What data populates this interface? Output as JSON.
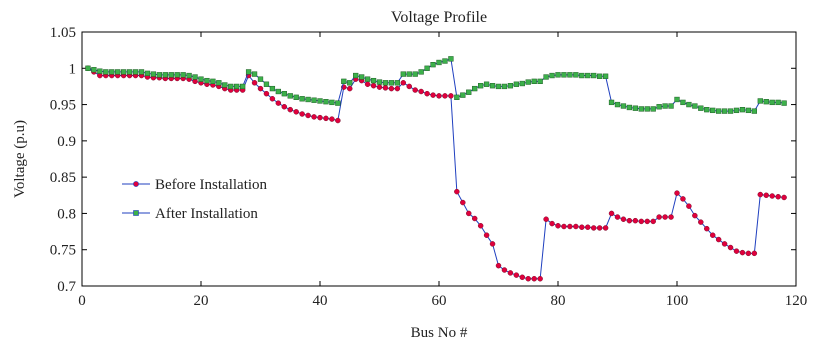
{
  "chart_data": {
    "type": "line",
    "title": "Voltage Profile",
    "xlabel": "Bus No #",
    "ylabel": "Voltage (p.u)",
    "xlim": [
      0,
      120
    ],
    "ylim": [
      0.7,
      1.05
    ],
    "xticks": [
      "0",
      "20",
      "40",
      "60",
      "80",
      "100",
      "120"
    ],
    "yticks": [
      "0.7",
      "0.75",
      "0.8",
      "0.85",
      "0.9",
      "0.95",
      "1",
      "1.05"
    ],
    "grid": false,
    "legend_position": "left",
    "series": [
      {
        "name": "Before Installation",
        "color": "#1f3fbf",
        "marker": "circle",
        "marker_color": "#e0003c",
        "x": [
          1,
          2,
          3,
          4,
          5,
          6,
          7,
          8,
          9,
          10,
          11,
          12,
          13,
          14,
          15,
          16,
          17,
          18,
          19,
          20,
          21,
          22,
          23,
          24,
          25,
          26,
          27,
          28,
          29,
          30,
          31,
          32,
          33,
          34,
          35,
          36,
          37,
          38,
          39,
          40,
          41,
          42,
          43,
          44,
          45,
          46,
          47,
          48,
          49,
          50,
          51,
          52,
          53,
          54,
          55,
          56,
          57,
          58,
          59,
          60,
          61,
          62,
          63,
          64,
          65,
          66,
          67,
          68,
          69,
          70,
          71,
          72,
          73,
          74,
          75,
          76,
          77,
          78,
          79,
          80,
          81,
          82,
          83,
          84,
          85,
          86,
          87,
          88,
          89,
          90,
          91,
          92,
          93,
          94,
          95,
          96,
          97,
          98,
          99,
          100,
          101,
          102,
          103,
          104,
          105,
          106,
          107,
          108,
          109,
          110,
          111,
          112,
          113,
          114,
          115,
          116,
          117,
          118
        ],
        "y": [
          1.0,
          0.995,
          0.99,
          0.99,
          0.99,
          0.99,
          0.99,
          0.99,
          0.99,
          0.99,
          0.988,
          0.987,
          0.987,
          0.986,
          0.986,
          0.986,
          0.986,
          0.985,
          0.982,
          0.98,
          0.978,
          0.977,
          0.975,
          0.972,
          0.97,
          0.97,
          0.97,
          0.99,
          0.98,
          0.972,
          0.965,
          0.958,
          0.952,
          0.947,
          0.943,
          0.94,
          0.937,
          0.935,
          0.933,
          0.932,
          0.931,
          0.93,
          0.928,
          0.974,
          0.972,
          0.985,
          0.983,
          0.978,
          0.976,
          0.974,
          0.973,
          0.972,
          0.972,
          0.98,
          0.975,
          0.97,
          0.968,
          0.965,
          0.963,
          0.962,
          0.962,
          0.962,
          0.83,
          0.815,
          0.8,
          0.793,
          0.783,
          0.77,
          0.758,
          0.728,
          0.722,
          0.718,
          0.715,
          0.712,
          0.71,
          0.71,
          0.71,
          0.792,
          0.786,
          0.783,
          0.782,
          0.782,
          0.782,
          0.781,
          0.781,
          0.78,
          0.78,
          0.78,
          0.8,
          0.795,
          0.792,
          0.79,
          0.79,
          0.789,
          0.789,
          0.789,
          0.795,
          0.795,
          0.795,
          0.828,
          0.82,
          0.81,
          0.797,
          0.788,
          0.779,
          0.77,
          0.764,
          0.758,
          0.753,
          0.748,
          0.746,
          0.745,
          0.745,
          0.826,
          0.825,
          0.824,
          0.823,
          0.822
        ]
      },
      {
        "name": "After Installation",
        "color": "#1f3fbf",
        "marker": "square",
        "marker_color": "#3cb04a",
        "x": [
          1,
          2,
          3,
          4,
          5,
          6,
          7,
          8,
          9,
          10,
          11,
          12,
          13,
          14,
          15,
          16,
          17,
          18,
          19,
          20,
          21,
          22,
          23,
          24,
          25,
          26,
          27,
          28,
          29,
          30,
          31,
          32,
          33,
          34,
          35,
          36,
          37,
          38,
          39,
          40,
          41,
          42,
          43,
          44,
          45,
          46,
          47,
          48,
          49,
          50,
          51,
          52,
          53,
          54,
          55,
          56,
          57,
          58,
          59,
          60,
          61,
          62,
          63,
          64,
          65,
          66,
          67,
          68,
          69,
          70,
          71,
          72,
          73,
          74,
          75,
          76,
          77,
          78,
          79,
          80,
          81,
          82,
          83,
          84,
          85,
          86,
          87,
          88,
          89,
          90,
          91,
          92,
          93,
          94,
          95,
          96,
          97,
          98,
          99,
          100,
          101,
          102,
          103,
          104,
          105,
          106,
          107,
          108,
          109,
          110,
          111,
          112,
          113,
          114,
          115,
          116,
          117,
          118
        ],
        "y": [
          1.0,
          0.998,
          0.996,
          0.995,
          0.995,
          0.995,
          0.995,
          0.995,
          0.995,
          0.995,
          0.993,
          0.992,
          0.991,
          0.991,
          0.991,
          0.991,
          0.991,
          0.99,
          0.988,
          0.985,
          0.983,
          0.982,
          0.98,
          0.977,
          0.975,
          0.975,
          0.975,
          0.995,
          0.992,
          0.985,
          0.978,
          0.972,
          0.968,
          0.965,
          0.962,
          0.96,
          0.958,
          0.957,
          0.956,
          0.955,
          0.954,
          0.953,
          0.952,
          0.982,
          0.98,
          0.99,
          0.988,
          0.985,
          0.983,
          0.981,
          0.98,
          0.98,
          0.98,
          0.992,
          0.992,
          0.992,
          0.995,
          1.0,
          1.005,
          1.008,
          1.01,
          1.013,
          0.96,
          0.963,
          0.967,
          0.972,
          0.976,
          0.978,
          0.976,
          0.975,
          0.975,
          0.976,
          0.978,
          0.979,
          0.981,
          0.982,
          0.982,
          0.988,
          0.99,
          0.991,
          0.991,
          0.991,
          0.991,
          0.99,
          0.99,
          0.99,
          0.989,
          0.989,
          0.953,
          0.95,
          0.948,
          0.946,
          0.945,
          0.944,
          0.944,
          0.944,
          0.947,
          0.948,
          0.948,
          0.957,
          0.953,
          0.95,
          0.948,
          0.945,
          0.943,
          0.942,
          0.941,
          0.941,
          0.941,
          0.942,
          0.943,
          0.942,
          0.941,
          0.955,
          0.954,
          0.953,
          0.953,
          0.952
        ]
      }
    ]
  }
}
